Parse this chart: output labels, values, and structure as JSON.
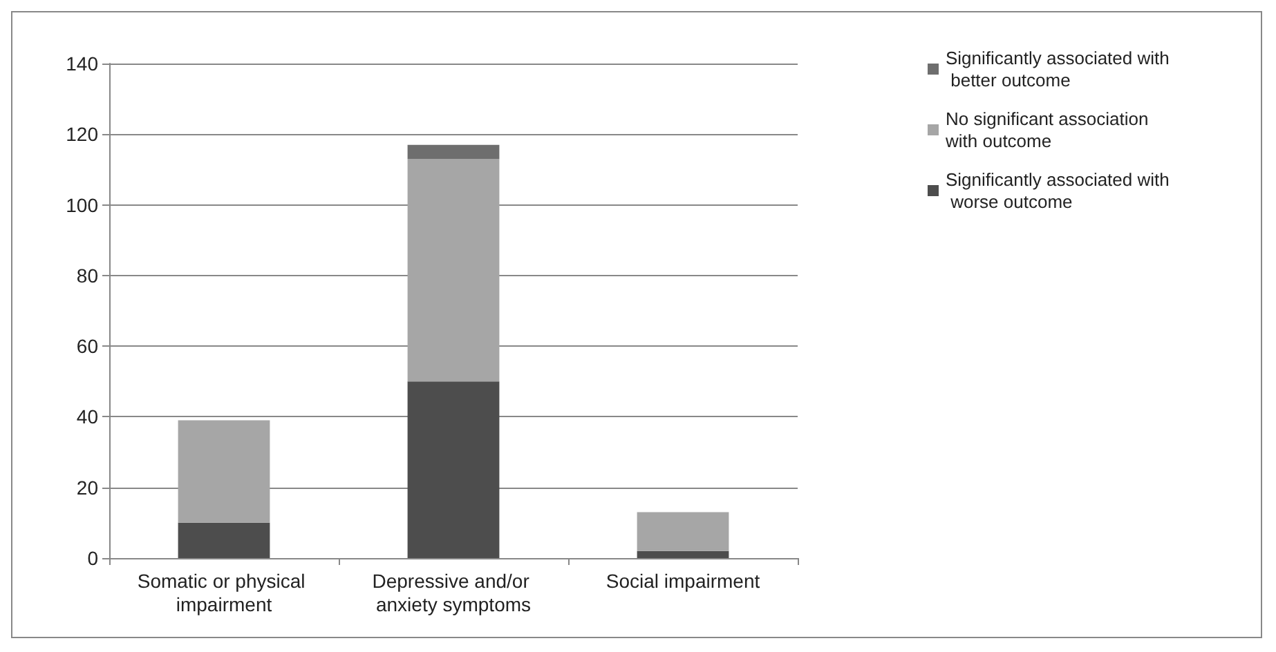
{
  "chart_data": {
    "type": "bar",
    "stacked": true,
    "categories": [
      "Somatic or physical impairment",
      "Depressive and/or anxiety symptoms",
      "Social impairment"
    ],
    "series": [
      {
        "name": "Significantly associated with worse outcome",
        "color": "#4d4d4d",
        "values": [
          10,
          50,
          2
        ]
      },
      {
        "name": "No significant association with outcome",
        "color": "#a6a6a6",
        "values": [
          29,
          63,
          11
        ]
      },
      {
        "name": "Significantly associated with better outcome",
        "color": "#6e6e6e",
        "values": [
          0,
          4,
          0
        ]
      }
    ],
    "ylim": [
      0,
      140
    ],
    "yticks": [
      0,
      20,
      40,
      60,
      80,
      100,
      120,
      140
    ],
    "grid": "y",
    "legend": "top right"
  }
}
